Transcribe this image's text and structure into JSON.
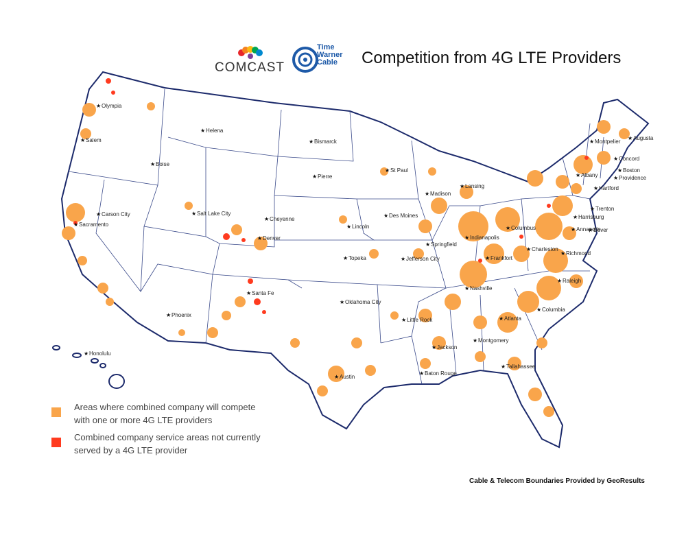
{
  "header": {
    "brand_1": "COMCAST",
    "brand_2_lines": [
      "Time",
      "Warner",
      "Cable"
    ],
    "title": "Competition from 4G LTE Providers"
  },
  "map": {
    "cities": [
      "Olympia",
      "Salem",
      "Helena",
      "Boise",
      "Bismarck",
      "Pierre",
      "St Paul",
      "Madison",
      "Lansing",
      "Montpelier",
      "Augusta",
      "Concord",
      "Albany",
      "Boston",
      "Hartford",
      "Providence",
      "Carson City",
      "Sacramento",
      "Salt Lake City",
      "Cheyenne",
      "Denver",
      "Lincoln",
      "Des Moines",
      "Springfield",
      "Indianapolis",
      "Columbus",
      "Harrisburg",
      "Trenton",
      "Annapolis",
      "Dover",
      "Charleston",
      "Frankfort",
      "Richmond",
      "Topeka",
      "Jefferson City",
      "Nashville",
      "Raleigh",
      "Santa Fe",
      "Phoenix",
      "Oklahoma City",
      "Little Rock",
      "Atlanta",
      "Columbia",
      "Montgomery",
      "Jackson",
      "Austin",
      "Baton Rouge",
      "Tallahassee",
      "Honolulu"
    ]
  },
  "legend": {
    "items": [
      {
        "lines": [
          "Areas where combined company will compete",
          "with one or more 4G LTE providers"
        ],
        "color": "#f9a54b"
      },
      {
        "lines": [
          "Combined company service areas not currently",
          "served by a 4G LTE provider"
        ],
        "color": "#ff3b1f"
      }
    ]
  },
  "credit": "Cable & Telecom Boundaries Provided by GeoResults"
}
